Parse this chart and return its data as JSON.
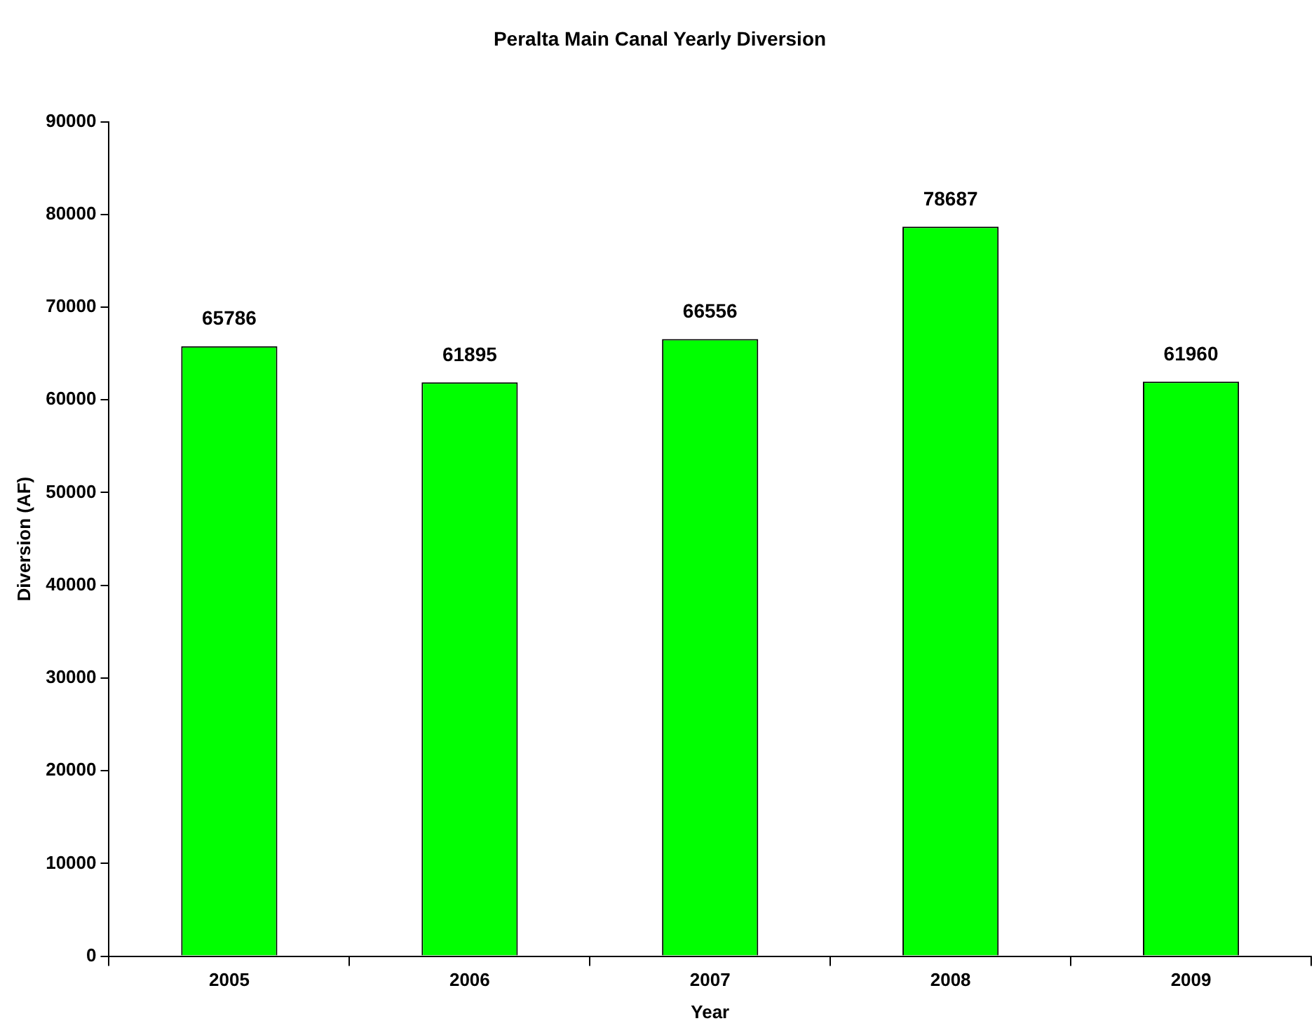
{
  "chart_data": {
    "type": "bar",
    "title": "Peralta Main Canal Yearly Diversion",
    "xlabel": "Year",
    "ylabel": "Diversion (AF)",
    "categories": [
      "2005",
      "2006",
      "2007",
      "2008",
      "2009"
    ],
    "values": [
      65786,
      61895,
      66556,
      78687,
      61960
    ],
    "color": "#00ff00",
    "ylim": [
      0,
      90000
    ],
    "yticks": [
      0,
      10000,
      20000,
      30000,
      40000,
      50000,
      60000,
      70000,
      80000,
      90000
    ],
    "grid": false,
    "legend": false,
    "data_labels": true
  }
}
